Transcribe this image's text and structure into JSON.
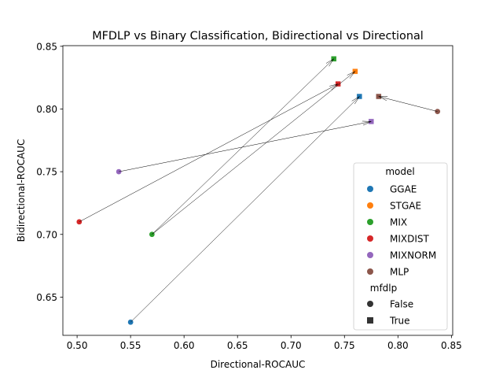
{
  "chart_data": {
    "type": "scatter",
    "title": "MFDLP vs Binary Classification, Bidirectional vs Directional",
    "xlabel": "Directional-ROCAUC",
    "ylabel": "Bidirectional-ROCAUC",
    "xlim": [
      0.4867,
      0.8512
    ],
    "ylim": [
      0.6195,
      0.8505
    ],
    "xticks": [
      0.5,
      0.55,
      0.6,
      0.65,
      0.7,
      0.75,
      0.8,
      0.85
    ],
    "xtick_labels": [
      "0.50",
      "0.55",
      "0.60",
      "0.65",
      "0.70",
      "0.75",
      "0.80",
      "0.85"
    ],
    "yticks": [
      0.65,
      0.7,
      0.75,
      0.8,
      0.85
    ],
    "ytick_labels": [
      "0.65",
      "0.70",
      "0.75",
      "0.80",
      "0.85"
    ],
    "grid": false,
    "legend_position": "lower-right",
    "legend": {
      "hue_title": "model",
      "style_title": "mfdlp",
      "style_items": [
        {
          "label": "False",
          "marker": "circle"
        },
        {
          "label": "True",
          "marker": "square"
        }
      ]
    },
    "series": [
      {
        "name": "GGAE",
        "color": "#1f77b4",
        "points": [
          {
            "x": 0.55,
            "y": 0.63,
            "mfdlp": "False"
          },
          {
            "x": 0.764,
            "y": 0.81,
            "mfdlp": "True"
          }
        ]
      },
      {
        "name": "STGAE",
        "color": "#ff7f0e",
        "points": [
          {
            "x": 0.76,
            "y": 0.83,
            "mfdlp": "True"
          }
        ]
      },
      {
        "name": "MIX",
        "color": "#2ca02c",
        "points": [
          {
            "x": 0.57,
            "y": 0.7,
            "mfdlp": "False"
          },
          {
            "x": 0.74,
            "y": 0.84,
            "mfdlp": "True"
          }
        ]
      },
      {
        "name": "MIXDIST",
        "color": "#d62728",
        "points": [
          {
            "x": 0.502,
            "y": 0.71,
            "mfdlp": "False"
          },
          {
            "x": 0.744,
            "y": 0.82,
            "mfdlp": "True"
          }
        ]
      },
      {
        "name": "MIXNORM",
        "color": "#9467bd",
        "points": [
          {
            "x": 0.539,
            "y": 0.75,
            "mfdlp": "False"
          },
          {
            "x": 0.775,
            "y": 0.79,
            "mfdlp": "True"
          }
        ]
      },
      {
        "name": "MLP",
        "color": "#8c564b",
        "points": [
          {
            "x": 0.837,
            "y": 0.798,
            "mfdlp": "False"
          },
          {
            "x": 0.782,
            "y": 0.81,
            "mfdlp": "True"
          }
        ]
      }
    ],
    "arrows": [
      {
        "from": [
          0.55,
          0.63
        ],
        "to": [
          0.764,
          0.81
        ]
      },
      {
        "from": [
          0.57,
          0.7
        ],
        "to": [
          0.76,
          0.83
        ]
      },
      {
        "from": [
          0.57,
          0.7
        ],
        "to": [
          0.74,
          0.84
        ]
      },
      {
        "from": [
          0.502,
          0.71
        ],
        "to": [
          0.744,
          0.82
        ]
      },
      {
        "from": [
          0.539,
          0.75
        ],
        "to": [
          0.775,
          0.79
        ]
      },
      {
        "from": [
          0.837,
          0.798
        ],
        "to": [
          0.782,
          0.81
        ]
      }
    ]
  }
}
